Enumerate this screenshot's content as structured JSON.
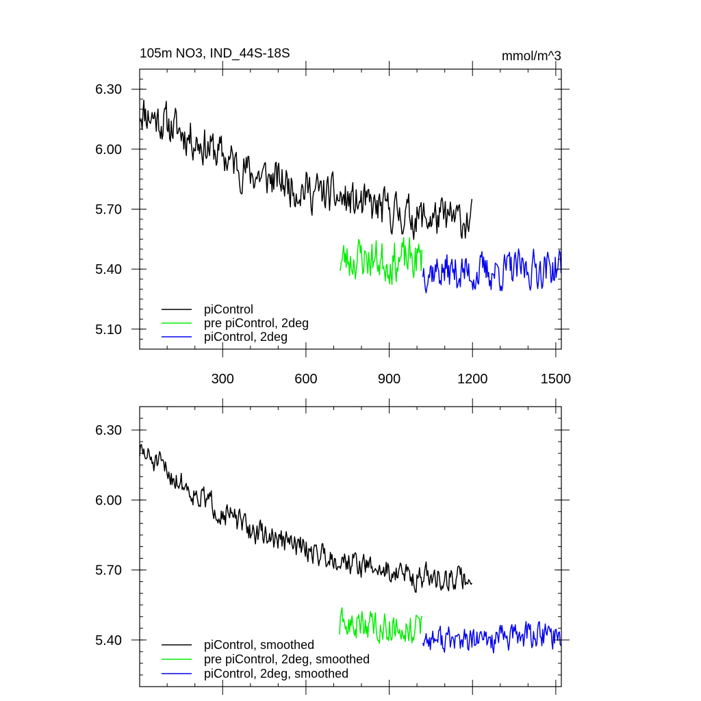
{
  "chart_data": [
    {
      "type": "line",
      "title": "105m NO3, IND_44S-18S",
      "units": "mmol/m^3",
      "xlim": [
        1,
        1520
      ],
      "ylim": [
        5.0,
        6.4
      ],
      "x_ticks": [
        300,
        600,
        900,
        1200,
        1500
      ],
      "y_ticks": [
        5.1,
        5.4,
        5.7,
        6.0,
        6.3
      ],
      "y_tick_labels": [
        "5.10",
        "5.40",
        "5.70",
        "6.00",
        "6.30"
      ],
      "legend_position": "bottom-left",
      "series": [
        {
          "name": "piControl",
          "color": "#000000",
          "x_range": [
            1,
            1200
          ],
          "trend": [
            [
              1,
              6.2
            ],
            [
              200,
              6.05
            ],
            [
              400,
              5.88
            ],
            [
              600,
              5.8
            ],
            [
              800,
              5.72
            ],
            [
              1000,
              5.66
            ],
            [
              1200,
              5.64
            ]
          ],
          "noise": 0.085,
          "seed": 11
        },
        {
          "name": "pre piControl, 2deg",
          "color": "#00ee00",
          "x_range": [
            721,
            1020
          ],
          "trend": [
            [
              721,
              5.44
            ],
            [
              800,
              5.46
            ],
            [
              900,
              5.44
            ],
            [
              1020,
              5.45
            ]
          ],
          "noise": 0.09,
          "seed": 23
        },
        {
          "name": "piControl, 2deg",
          "color": "#0000ee",
          "x_range": [
            1021,
            1520
          ],
          "trend": [
            [
              1021,
              5.4
            ],
            [
              1200,
              5.38
            ],
            [
              1400,
              5.4
            ],
            [
              1520,
              5.41
            ]
          ],
          "noise": 0.08,
          "seed": 37
        }
      ]
    },
    {
      "type": "line",
      "xlim": [
        1,
        1520
      ],
      "ylim": [
        5.2,
        6.4
      ],
      "x_ticks": [
        300,
        600,
        900,
        1200,
        1500
      ],
      "y_ticks": [
        5.4,
        5.7,
        6.0,
        6.3
      ],
      "y_tick_labels": [
        "5.40",
        "5.70",
        "6.00",
        "6.30"
      ],
      "legend_position": "bottom-left",
      "series": [
        {
          "name": "piControl, smoothed",
          "color": "#000000",
          "x_range": [
            1,
            1200
          ],
          "trend": [
            [
              1,
              6.21
            ],
            [
              200,
              6.03
            ],
            [
              400,
              5.87
            ],
            [
              600,
              5.79
            ],
            [
              800,
              5.72
            ],
            [
              1000,
              5.67
            ],
            [
              1200,
              5.66
            ]
          ],
          "noise": 0.045,
          "seed": 51
        },
        {
          "name": "pre piControl, 2deg, smoothed",
          "color": "#00ee00",
          "x_range": [
            721,
            1020
          ],
          "trend": [
            [
              721,
              5.45
            ],
            [
              800,
              5.47
            ],
            [
              900,
              5.46
            ],
            [
              1020,
              5.45
            ]
          ],
          "noise": 0.055,
          "seed": 63
        },
        {
          "name": "piControl, 2deg, smoothed",
          "color": "#0000ee",
          "x_range": [
            1021,
            1520
          ],
          "trend": [
            [
              1021,
              5.41
            ],
            [
              1200,
              5.39
            ],
            [
              1400,
              5.42
            ],
            [
              1520,
              5.42
            ]
          ],
          "noise": 0.05,
          "seed": 77
        }
      ]
    }
  ]
}
